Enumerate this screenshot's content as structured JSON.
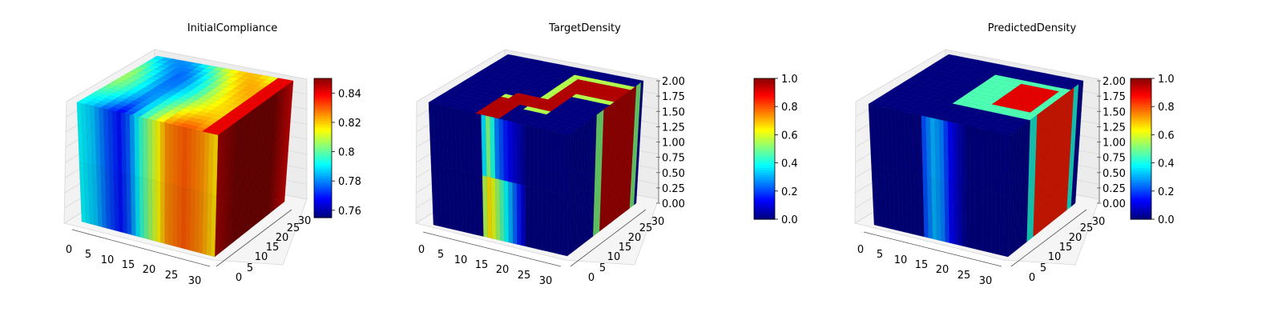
{
  "chart_data": [
    {
      "type": "3d-voxel",
      "title": "InitialCompliance",
      "x_ticks": [
        0,
        5,
        10,
        15,
        20,
        25,
        30
      ],
      "y_ticks": [
        0,
        5,
        10,
        15,
        20,
        25,
        30
      ],
      "xlim": [
        0,
        32
      ],
      "ylim": [
        0,
        32
      ],
      "zlim": [
        0,
        2
      ],
      "colormap": "jet",
      "colorbar": {
        "min": 0.755,
        "max": 0.85,
        "ticks": [
          0.76,
          0.78,
          0.8,
          0.82,
          0.84
        ]
      },
      "front_profile": [
        {
          "x": 0,
          "v": 0.79
        },
        {
          "x": 3,
          "v": 0.785
        },
        {
          "x": 6,
          "v": 0.775
        },
        {
          "x": 9,
          "v": 0.768
        },
        {
          "x": 11,
          "v": 0.775
        },
        {
          "x": 14,
          "v": 0.795
        },
        {
          "x": 17,
          "v": 0.81
        },
        {
          "x": 20,
          "v": 0.825
        },
        {
          "x": 24,
          "v": 0.83
        },
        {
          "x": 28,
          "v": 0.825
        },
        {
          "x": 32,
          "v": 0.815
        }
      ],
      "right_profile": [
        {
          "y": 0,
          "v": 0.845
        },
        {
          "y": 8,
          "v": 0.85
        },
        {
          "y": 16,
          "v": 0.85
        },
        {
          "y": 24,
          "v": 0.85
        },
        {
          "y": 32,
          "v": 0.84
        }
      ]
    },
    {
      "type": "3d-voxel",
      "title": "TargetDensity",
      "x_ticks": [
        0,
        5,
        10,
        15,
        20,
        25,
        30
      ],
      "y_ticks": [
        0,
        5,
        10,
        15,
        20,
        25,
        30
      ],
      "z_ticks": [
        "0.00",
        "0.25",
        "0.50",
        "0.75",
        "1.00",
        "1.25",
        "1.50",
        "1.75",
        "2.00"
      ],
      "xlim": [
        0,
        32
      ],
      "ylim": [
        0,
        32
      ],
      "zlim": [
        0,
        2
      ],
      "colormap": "jet",
      "colorbar": {
        "min": 0,
        "max": 1,
        "ticks": [
          "0.0",
          "0.2",
          "0.4",
          "0.6",
          "0.8",
          "1.0"
        ]
      },
      "front_profile_upper": [
        {
          "x": 0,
          "v": 0.0
        },
        {
          "x": 11,
          "v": 0.0
        },
        {
          "x": 12,
          "v": 0.35
        },
        {
          "x": 13,
          "v": 0.5
        },
        {
          "x": 14,
          "v": 0.4
        },
        {
          "x": 15,
          "v": 0.25
        },
        {
          "x": 17,
          "v": 0.15
        },
        {
          "x": 19,
          "v": 0.08
        },
        {
          "x": 22,
          "v": 0.0
        },
        {
          "x": 32,
          "v": 0.0
        }
      ],
      "front_profile_lower": [
        {
          "x": 0,
          "v": 0.0
        },
        {
          "x": 11,
          "v": 0.0
        },
        {
          "x": 12,
          "v": 0.55
        },
        {
          "x": 13,
          "v": 0.65
        },
        {
          "x": 14,
          "v": 0.6
        },
        {
          "x": 16,
          "v": 0.45
        },
        {
          "x": 18,
          "v": 0.3
        },
        {
          "x": 20,
          "v": 0.15
        },
        {
          "x": 22,
          "v": 0.0
        },
        {
          "x": 32,
          "v": 0.0
        }
      ]
    },
    {
      "type": "3d-voxel",
      "title": "PredictedDensity",
      "x_ticks": [
        0,
        5,
        10,
        15,
        20,
        25,
        30
      ],
      "y_ticks": [
        0,
        5,
        10,
        15,
        20,
        25,
        30
      ],
      "z_ticks": [
        "0.00",
        "0.25",
        "0.50",
        "0.75",
        "1.00",
        "1.25",
        "1.50",
        "1.75",
        "2.00"
      ],
      "xlim": [
        0,
        32
      ],
      "ylim": [
        0,
        32
      ],
      "zlim": [
        0,
        2
      ],
      "colormap": "jet",
      "colorbar": {
        "min": 0,
        "max": 1,
        "ticks": [
          "0.0",
          "0.2",
          "0.4",
          "0.6",
          "0.8",
          "1.0"
        ]
      },
      "front_profile": [
        {
          "x": 0,
          "v": 0.0
        },
        {
          "x": 11,
          "v": 0.0
        },
        {
          "x": 12,
          "v": 0.2
        },
        {
          "x": 14,
          "v": 0.3
        },
        {
          "x": 16,
          "v": 0.25
        },
        {
          "x": 18,
          "v": 0.12
        },
        {
          "x": 20,
          "v": 0.05
        },
        {
          "x": 22,
          "v": 0.0
        },
        {
          "x": 32,
          "v": 0.0
        }
      ]
    }
  ]
}
